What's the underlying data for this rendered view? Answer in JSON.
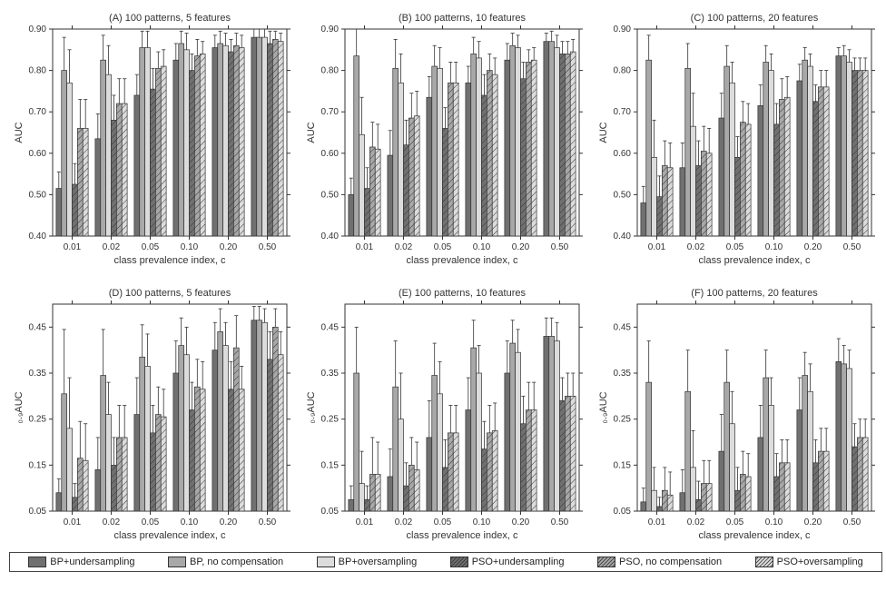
{
  "global": {
    "background_color": "#ffffff",
    "axis_color": "#333333",
    "tick_font_size": 10,
    "title_font_size": 11,
    "label_font_size": 11,
    "xlabel": "class prevalence index, c",
    "categories": [
      "0.01",
      "0.02",
      "0.05",
      "0.10",
      "0.20",
      "0.50"
    ],
    "series_colors": [
      "#707070",
      "#a8a8a8",
      "#dcdcdc",
      "#707070",
      "#a8a8a8",
      "#dcdcdc"
    ],
    "series_hatch": [
      false,
      false,
      false,
      true,
      true,
      true
    ],
    "hatch_stroke": "#333333",
    "bar_border": "#333333",
    "error_color": "#333333",
    "bar_group_width": 0.82,
    "legend_labels": [
      "BP+undersampling",
      "BP, no compensation",
      "BP+oversampling",
      "PSO+undersampling",
      "PSO, no compensation",
      "PSO+oversampling"
    ]
  },
  "panels": [
    {
      "id": "A",
      "title": "(A) 100 patterns, 5 features",
      "ylabel": "AUC",
      "ylim": [
        0.4,
        0.9
      ],
      "ytick_step": 0.1,
      "values": [
        [
          0.515,
          0.635,
          0.74,
          0.825,
          0.855,
          0.88
        ],
        [
          0.8,
          0.825,
          0.855,
          0.865,
          0.865,
          0.88
        ],
        [
          0.77,
          0.79,
          0.855,
          0.85,
          0.86,
          0.88
        ],
        [
          0.525,
          0.68,
          0.755,
          0.8,
          0.845,
          0.865
        ],
        [
          0.66,
          0.72,
          0.805,
          0.835,
          0.86,
          0.875
        ],
        [
          0.66,
          0.72,
          0.81,
          0.84,
          0.855,
          0.87
        ]
      ],
      "errors": [
        [
          0.04,
          0.06,
          0.05,
          0.04,
          0.03,
          0.02
        ],
        [
          0.08,
          0.06,
          0.04,
          0.03,
          0.03,
          0.02
        ],
        [
          0.08,
          0.07,
          0.04,
          0.04,
          0.03,
          0.02
        ],
        [
          0.05,
          0.06,
          0.05,
          0.04,
          0.03,
          0.03
        ],
        [
          0.07,
          0.06,
          0.04,
          0.04,
          0.03,
          0.02
        ],
        [
          0.07,
          0.06,
          0.04,
          0.03,
          0.03,
          0.02
        ]
      ]
    },
    {
      "id": "B",
      "title": "(B) 100 patterns, 10 features",
      "ylabel": "AUC",
      "ylim": [
        0.4,
        0.9
      ],
      "ytick_step": 0.1,
      "values": [
        [
          0.5,
          0.595,
          0.735,
          0.77,
          0.825,
          0.87
        ],
        [
          0.835,
          0.805,
          0.81,
          0.84,
          0.86,
          0.87
        ],
        [
          0.645,
          0.77,
          0.805,
          0.83,
          0.855,
          0.855
        ],
        [
          0.515,
          0.62,
          0.66,
          0.74,
          0.78,
          0.84
        ],
        [
          0.615,
          0.685,
          0.77,
          0.8,
          0.82,
          0.84
        ],
        [
          0.61,
          0.69,
          0.77,
          0.79,
          0.825,
          0.845
        ]
      ],
      "errors": [
        [
          0.04,
          0.06,
          0.05,
          0.04,
          0.04,
          0.02
        ],
        [
          0.07,
          0.07,
          0.05,
          0.04,
          0.03,
          0.025
        ],
        [
          0.09,
          0.07,
          0.05,
          0.04,
          0.03,
          0.03
        ],
        [
          0.05,
          0.06,
          0.05,
          0.05,
          0.04,
          0.03
        ],
        [
          0.06,
          0.06,
          0.05,
          0.04,
          0.03,
          0.03
        ],
        [
          0.06,
          0.06,
          0.05,
          0.04,
          0.03,
          0.03
        ]
      ]
    },
    {
      "id": "C",
      "title": "(C) 100 patterns, 20 features",
      "ylabel": "AUC",
      "ylim": [
        0.4,
        0.9
      ],
      "ytick_step": 0.1,
      "values": [
        [
          0.48,
          0.565,
          0.685,
          0.715,
          0.775,
          0.835
        ],
        [
          0.825,
          0.805,
          0.81,
          0.82,
          0.825,
          0.835
        ],
        [
          0.59,
          0.665,
          0.77,
          0.8,
          0.81,
          0.82
        ],
        [
          0.495,
          0.57,
          0.59,
          0.67,
          0.725,
          0.8
        ],
        [
          0.57,
          0.605,
          0.675,
          0.73,
          0.76,
          0.8
        ],
        [
          0.565,
          0.6,
          0.67,
          0.735,
          0.76,
          0.8
        ]
      ],
      "errors": [
        [
          0.04,
          0.06,
          0.06,
          0.05,
          0.04,
          0.02
        ],
        [
          0.06,
          0.06,
          0.05,
          0.04,
          0.03,
          0.025
        ],
        [
          0.09,
          0.08,
          0.05,
          0.04,
          0.03,
          0.03
        ],
        [
          0.05,
          0.06,
          0.05,
          0.05,
          0.04,
          0.03
        ],
        [
          0.06,
          0.06,
          0.05,
          0.05,
          0.04,
          0.03
        ],
        [
          0.06,
          0.06,
          0.05,
          0.05,
          0.04,
          0.03
        ]
      ]
    },
    {
      "id": "D",
      "title": "(D) 100 patterns, 5 features",
      "ylabel": "₀.₉AUC",
      "ylim": [
        0.05,
        0.5
      ],
      "ytick_step": 0.1,
      "ytick_start": 0.05,
      "values": [
        [
          0.09,
          0.14,
          0.26,
          0.35,
          0.4,
          0.465
        ],
        [
          0.305,
          0.345,
          0.385,
          0.41,
          0.44,
          0.465
        ],
        [
          0.23,
          0.26,
          0.365,
          0.39,
          0.41,
          0.46
        ],
        [
          0.08,
          0.15,
          0.22,
          0.27,
          0.315,
          0.38
        ],
        [
          0.165,
          0.21,
          0.26,
          0.32,
          0.405,
          0.45
        ],
        [
          0.16,
          0.21,
          0.255,
          0.315,
          0.315,
          0.39
        ]
      ],
      "errors": [
        [
          0.03,
          0.07,
          0.08,
          0.07,
          0.06,
          0.03
        ],
        [
          0.14,
          0.1,
          0.07,
          0.06,
          0.05,
          0.03
        ],
        [
          0.11,
          0.07,
          0.07,
          0.06,
          0.05,
          0.03
        ],
        [
          0.03,
          0.06,
          0.06,
          0.06,
          0.06,
          0.06
        ],
        [
          0.08,
          0.07,
          0.06,
          0.06,
          0.07,
          0.04
        ],
        [
          0.08,
          0.07,
          0.06,
          0.06,
          0.05,
          0.05
        ]
      ]
    },
    {
      "id": "E",
      "title": "(E) 100 patterns, 10 features",
      "ylabel": "₀.₉AUC",
      "ylim": [
        0.05,
        0.5
      ],
      "ytick_step": 0.1,
      "ytick_start": 0.05,
      "values": [
        [
          0.075,
          0.125,
          0.21,
          0.27,
          0.35,
          0.43
        ],
        [
          0.35,
          0.32,
          0.345,
          0.405,
          0.415,
          0.43
        ],
        [
          0.11,
          0.25,
          0.305,
          0.35,
          0.395,
          0.42
        ],
        [
          0.075,
          0.105,
          0.145,
          0.185,
          0.24,
          0.29
        ],
        [
          0.13,
          0.15,
          0.22,
          0.22,
          0.27,
          0.3
        ],
        [
          0.13,
          0.14,
          0.22,
          0.225,
          0.27,
          0.3
        ]
      ],
      "errors": [
        [
          0.03,
          0.06,
          0.08,
          0.07,
          0.07,
          0.04
        ],
        [
          0.1,
          0.1,
          0.07,
          0.06,
          0.05,
          0.04
        ],
        [
          0.07,
          0.1,
          0.07,
          0.06,
          0.05,
          0.04
        ],
        [
          0.03,
          0.05,
          0.06,
          0.06,
          0.06,
          0.05
        ],
        [
          0.08,
          0.06,
          0.06,
          0.06,
          0.06,
          0.05
        ],
        [
          0.07,
          0.06,
          0.06,
          0.06,
          0.06,
          0.05
        ]
      ]
    },
    {
      "id": "F",
      "title": "(F) 100 patterns, 20 features",
      "ylabel": "₀.₉AUC",
      "ylim": [
        0.05,
        0.5
      ],
      "ytick_step": 0.1,
      "ytick_start": 0.05,
      "values": [
        [
          0.07,
          0.09,
          0.18,
          0.21,
          0.27,
          0.375
        ],
        [
          0.33,
          0.31,
          0.33,
          0.34,
          0.345,
          0.37
        ],
        [
          0.095,
          0.145,
          0.24,
          0.28,
          0.31,
          0.36
        ],
        [
          0.06,
          0.075,
          0.095,
          0.125,
          0.155,
          0.19
        ],
        [
          0.095,
          0.11,
          0.13,
          0.155,
          0.18,
          0.21
        ],
        [
          0.085,
          0.11,
          0.125,
          0.155,
          0.18,
          0.21
        ]
      ],
      "errors": [
        [
          0.03,
          0.05,
          0.08,
          0.07,
          0.07,
          0.05
        ],
        [
          0.09,
          0.09,
          0.07,
          0.06,
          0.05,
          0.04
        ],
        [
          0.05,
          0.08,
          0.07,
          0.06,
          0.06,
          0.04
        ],
        [
          0.02,
          0.04,
          0.05,
          0.05,
          0.05,
          0.05
        ],
        [
          0.05,
          0.05,
          0.05,
          0.05,
          0.05,
          0.04
        ],
        [
          0.05,
          0.05,
          0.05,
          0.05,
          0.05,
          0.04
        ]
      ]
    }
  ]
}
